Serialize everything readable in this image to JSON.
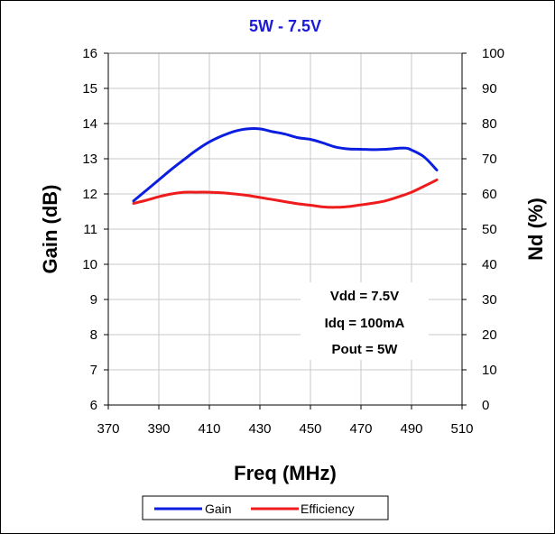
{
  "colors": {
    "title": "#1c1cd6",
    "gain": "#0a1ee0",
    "efficiency": "#ee1c1c",
    "grid": "#c8c8c8",
    "axis": "#000000"
  },
  "chart_data": {
    "type": "line",
    "title": "5W - 7.5V",
    "xlabel": "Freq (MHz)",
    "ylabel": "Gain (dB)",
    "y2label": "Nd (%)",
    "xlim": [
      370,
      510
    ],
    "ylim": [
      6,
      16
    ],
    "y2lim": [
      0,
      100
    ],
    "xticks": [
      370,
      390,
      410,
      430,
      450,
      470,
      490,
      510
    ],
    "yticks": [
      6,
      7,
      8,
      9,
      10,
      11,
      12,
      13,
      14,
      15,
      16
    ],
    "y2ticks": [
      0,
      10,
      20,
      30,
      40,
      50,
      60,
      70,
      80,
      90,
      100
    ],
    "grid": true,
    "legend_position": "bottom",
    "annotation": [
      "Vdd = 7.5V",
      "Idq = 100mA",
      "Pout = 5W"
    ],
    "series": [
      {
        "name": "Gain",
        "axis": "left",
        "x": [
          380,
          385,
          390,
          395,
          400,
          405,
          410,
          415,
          420,
          425,
          430,
          435,
          440,
          445,
          450,
          455,
          460,
          465,
          470,
          475,
          480,
          485,
          488,
          490,
          495,
          500
        ],
        "values": [
          11.8,
          12.1,
          12.4,
          12.7,
          12.98,
          13.25,
          13.48,
          13.65,
          13.78,
          13.85,
          13.85,
          13.77,
          13.7,
          13.6,
          13.55,
          13.45,
          13.33,
          13.28,
          13.27,
          13.26,
          13.27,
          13.3,
          13.3,
          13.25,
          13.05,
          12.68
        ]
      },
      {
        "name": "Efficiency",
        "axis": "right",
        "x": [
          380,
          385,
          390,
          395,
          400,
          405,
          410,
          415,
          420,
          425,
          430,
          435,
          440,
          445,
          450,
          455,
          460,
          465,
          470,
          475,
          480,
          485,
          490,
          495,
          500
        ],
        "values": [
          57.3,
          58.2,
          59.2,
          60.0,
          60.5,
          60.5,
          60.5,
          60.3,
          60.0,
          59.6,
          59.0,
          58.4,
          57.8,
          57.2,
          56.8,
          56.3,
          56.2,
          56.4,
          56.9,
          57.4,
          58.1,
          59.2,
          60.5,
          62.2,
          64.0
        ]
      }
    ]
  }
}
